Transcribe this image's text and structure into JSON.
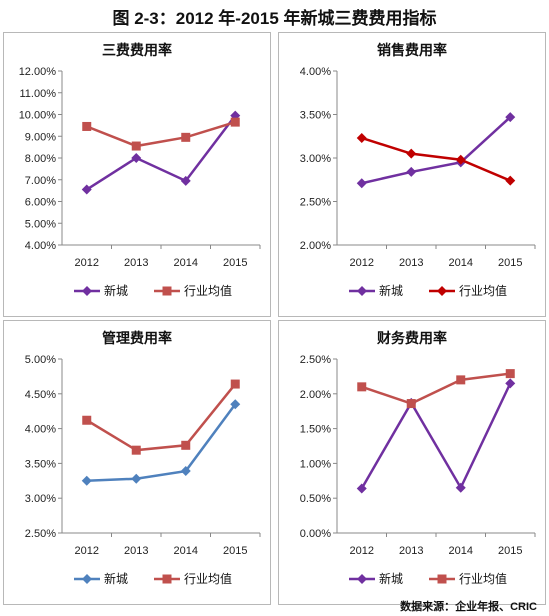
{
  "page": {
    "title": "图 2-3：2012 年-2015 年新城三费费用指标",
    "source": "数据来源：企业年报、CRIC"
  },
  "chart_data": [
    {
      "type": "line",
      "title": "三费费用率",
      "categories": [
        "2012",
        "2013",
        "2014",
        "2015"
      ],
      "yticks": [
        "4.00%",
        "5.00%",
        "6.00%",
        "7.00%",
        "8.00%",
        "9.00%",
        "10.00%",
        "11.00%",
        "12.00%"
      ],
      "ylim": [
        0.04,
        0.12
      ],
      "series": [
        {
          "name": "新城",
          "values": [
            0.0655,
            0.08,
            0.0695,
            0.0995
          ],
          "color": "#7030a0",
          "marker": "diamond"
        },
        {
          "name": "行业均值",
          "values": [
            0.0945,
            0.0855,
            0.0895,
            0.0965
          ],
          "color": "#c0504d",
          "marker": "square"
        }
      ]
    },
    {
      "type": "line",
      "title": "销售费用率",
      "categories": [
        "2012",
        "2013",
        "2014",
        "2015"
      ],
      "yticks": [
        "2.00%",
        "2.50%",
        "3.00%",
        "3.50%",
        "4.00%"
      ],
      "ylim": [
        0.02,
        0.04
      ],
      "series": [
        {
          "name": "新城",
          "values": [
            0.0271,
            0.0284,
            0.0295,
            0.0347
          ],
          "color": "#7030a0",
          "marker": "diamond"
        },
        {
          "name": "行业均值",
          "values": [
            0.0323,
            0.0305,
            0.0298,
            0.0274
          ],
          "color": "#c00000",
          "marker": "diamond"
        }
      ]
    },
    {
      "type": "line",
      "title": "管理费用率",
      "categories": [
        "2012",
        "2013",
        "2014",
        "2015"
      ],
      "yticks": [
        "2.50%",
        "3.00%",
        "3.50%",
        "4.00%",
        "4.50%",
        "5.00%"
      ],
      "ylim": [
        0.025,
        0.05
      ],
      "series": [
        {
          "name": "新城",
          "values": [
            0.0325,
            0.0328,
            0.0339,
            0.0435
          ],
          "color": "#4f81bd",
          "marker": "diamond"
        },
        {
          "name": "行业均值",
          "values": [
            0.0412,
            0.0369,
            0.0376,
            0.0464
          ],
          "color": "#c0504d",
          "marker": "square"
        }
      ]
    },
    {
      "type": "line",
      "title": "财务费用率",
      "categories": [
        "2012",
        "2013",
        "2014",
        "2015"
      ],
      "yticks": [
        "0.00%",
        "0.50%",
        "1.00%",
        "1.50%",
        "2.00%",
        "2.50%"
      ],
      "ylim": [
        0.0,
        0.025
      ],
      "series": [
        {
          "name": "新城",
          "values": [
            0.0064,
            0.0187,
            0.0065,
            0.0215
          ],
          "color": "#7030a0",
          "marker": "diamond"
        },
        {
          "name": "行业均值",
          "values": [
            0.021,
            0.0186,
            0.022,
            0.0229
          ],
          "color": "#c0504d",
          "marker": "square"
        }
      ]
    }
  ]
}
